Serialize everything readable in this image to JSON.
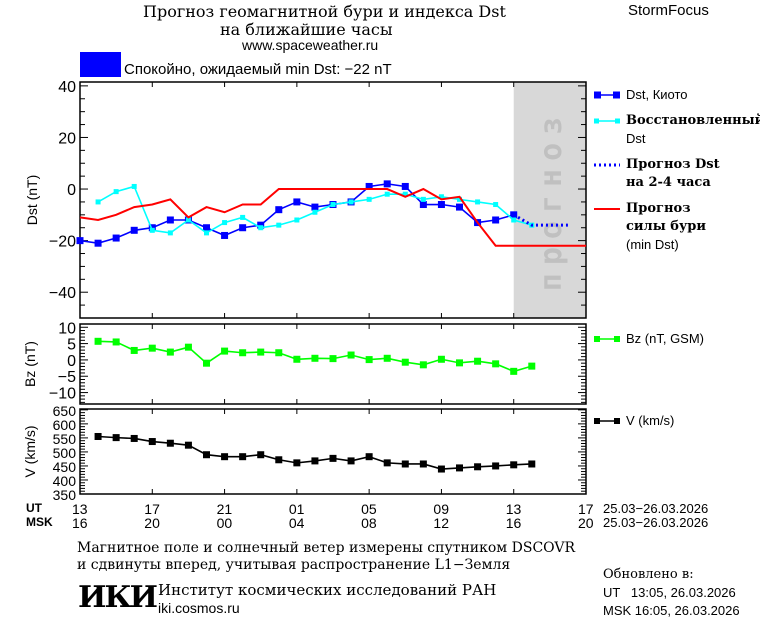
{
  "header": {
    "title_line1": "Прогноз геомагнитной бури и индекса Dst",
    "title_line2": "на ближайшие часы",
    "site": "www.spaceweather.ru",
    "brand": "StormFocus",
    "status_text": "Спокойно, ожидаемый min Dst: −22 nT",
    "status_color": "#0000ff"
  },
  "legend": {
    "kyoto": "Dst, Киото",
    "restored_1": "Восстановленный",
    "restored_2": "Dst",
    "forecast_1": "Прогноз Dst",
    "forecast_2": "на 2-4 часа",
    "storm_1": "Прогноз",
    "storm_2": "силы бури",
    "storm_3": "(min Dst)",
    "bz": "Bz (nT, GSM)",
    "v": "V (km/s)"
  },
  "xaxis": {
    "ut_label": "UT",
    "msk_label": "MSK",
    "ut_ticks": [
      "13",
      "17",
      "21",
      "01",
      "05",
      "09",
      "13",
      "17"
    ],
    "msk_ticks": [
      "16",
      "20",
      "00",
      "04",
      "08",
      "12",
      "16",
      "20"
    ],
    "ut_range": "25.03−26.03.2026",
    "msk_range": "25.03−26.03.2026"
  },
  "footer": {
    "note_1": "Магнитное поле и солнечный ветер измерены спутником DSCOVR",
    "note_2": "и сдвинуты вперед, учитывая распространение L1−Земля",
    "institute": "Институт космических исследований РАН",
    "institute_url": "iki.cosmos.ru",
    "logo_text": "ИКИ",
    "updated_label": "Обновлено в:",
    "updated_ut": "UT   13:05, 26.03.2026",
    "updated_msk": "MSK 16:05, 26.03.2026"
  },
  "chart_data": [
    {
      "type": "line",
      "ylabel": "Dst (nT)",
      "ylim": [
        -50,
        41.5
      ],
      "yticks": [
        40,
        20,
        0,
        -20,
        -40
      ],
      "x_unit": "hours from 13 UT 25.03.2026",
      "xlim": [
        0,
        28
      ],
      "forecast_region": {
        "from": 24,
        "to": 28,
        "label": "прогноз",
        "color": "#d8d8d8"
      },
      "series": [
        {
          "name": "Dst, Киото",
          "color": "#0000ff",
          "marker": "square",
          "x": [
            0,
            1,
            2,
            3,
            4,
            5,
            6,
            7,
            8,
            9,
            10,
            11,
            12,
            13,
            14,
            15,
            16,
            17,
            18,
            19,
            20,
            21,
            22,
            23,
            24
          ],
          "y": [
            -20,
            -21,
            -19,
            -16,
            -15,
            -12,
            -12,
            -15,
            -18,
            -15,
            -14,
            -8,
            -5,
            -7,
            -6,
            -5,
            1,
            2,
            1,
            -6,
            -6,
            -7,
            -13,
            -12,
            -10
          ]
        },
        {
          "name": "Восстановленный Dst",
          "color": "#00ffff",
          "marker": "square-small",
          "x": [
            1,
            2,
            3,
            4,
            5,
            6,
            7,
            8,
            9,
            10,
            11,
            12,
            13,
            14,
            15,
            16,
            17,
            18,
            19,
            20,
            21,
            22,
            23,
            24,
            25
          ],
          "y": [
            -5,
            -1,
            1,
            -16,
            -17,
            -12,
            -17,
            -13,
            -11,
            -15,
            -14,
            -12,
            -9,
            -6,
            -5,
            -4,
            -2,
            -2,
            -4,
            -3,
            -4,
            -5,
            -6,
            -12,
            -14
          ]
        },
        {
          "name": "Прогноз Dst на 2-4 часа",
          "color": "#0000ff",
          "style": "dotted",
          "x": [
            24,
            25,
            26,
            27
          ],
          "y": [
            -10,
            -14,
            -14,
            -14
          ]
        },
        {
          "name": "Прогноз силы бури (min Dst)",
          "color": "#ff0000",
          "style": "line",
          "x": [
            0,
            1,
            2,
            3,
            4,
            5,
            6,
            7,
            8,
            9,
            10,
            11,
            12,
            13,
            14,
            15,
            16,
            17,
            18,
            19,
            20,
            21,
            22,
            23,
            24,
            25,
            26,
            27,
            28
          ],
          "y": [
            -11,
            -12,
            -10,
            -7,
            -6,
            -4,
            -11,
            -7,
            -9,
            -6,
            -6,
            0,
            0,
            0,
            0,
            0,
            0,
            0,
            -3,
            0,
            -4,
            -3,
            -13,
            -22,
            -22,
            -22,
            -22,
            -22,
            -22
          ]
        }
      ]
    },
    {
      "type": "line",
      "ylabel": "Bz (nT)",
      "ylim": [
        -13.5,
        11
      ],
      "yticks": [
        10,
        5,
        0,
        -5,
        -10
      ],
      "xlim": [
        0,
        28
      ],
      "series": [
        {
          "name": "Bz (nT, GSM)",
          "color": "#00ff00",
          "marker": "square",
          "x": [
            1,
            2,
            3,
            4,
            5,
            6,
            7,
            8,
            9,
            10,
            11,
            12,
            13,
            14,
            15,
            16,
            17,
            18,
            19,
            20,
            21,
            22,
            23,
            24,
            25
          ],
          "y": [
            5.7,
            5.5,
            2.9,
            3.6,
            2.4,
            3.9,
            -1.0,
            2.7,
            2.2,
            2.4,
            2.2,
            0.2,
            0.5,
            0.4,
            1.5,
            0.1,
            0.5,
            -0.7,
            -1.5,
            0.2,
            -0.9,
            -0.4,
            -1.2,
            -3.5,
            -1.9
          ]
        }
      ]
    },
    {
      "type": "line",
      "ylabel": "V (km/s)",
      "ylim": [
        350,
        653
      ],
      "yticks": [
        650,
        600,
        550,
        500,
        450,
        400,
        350
      ],
      "xlim": [
        0,
        28
      ],
      "series": [
        {
          "name": "V (km/s)",
          "color": "#000000",
          "marker": "square",
          "x": [
            1,
            2,
            3,
            4,
            5,
            6,
            7,
            8,
            9,
            10,
            11,
            12,
            13,
            14,
            15,
            16,
            17,
            18,
            19,
            20,
            21,
            22,
            23,
            24,
            25
          ],
          "y": [
            555,
            551,
            548,
            537,
            531,
            524,
            490,
            483,
            483,
            490,
            472,
            461,
            468,
            477,
            468,
            483,
            461,
            457,
            457,
            439,
            443,
            447,
            450,
            454,
            457
          ]
        }
      ]
    }
  ]
}
